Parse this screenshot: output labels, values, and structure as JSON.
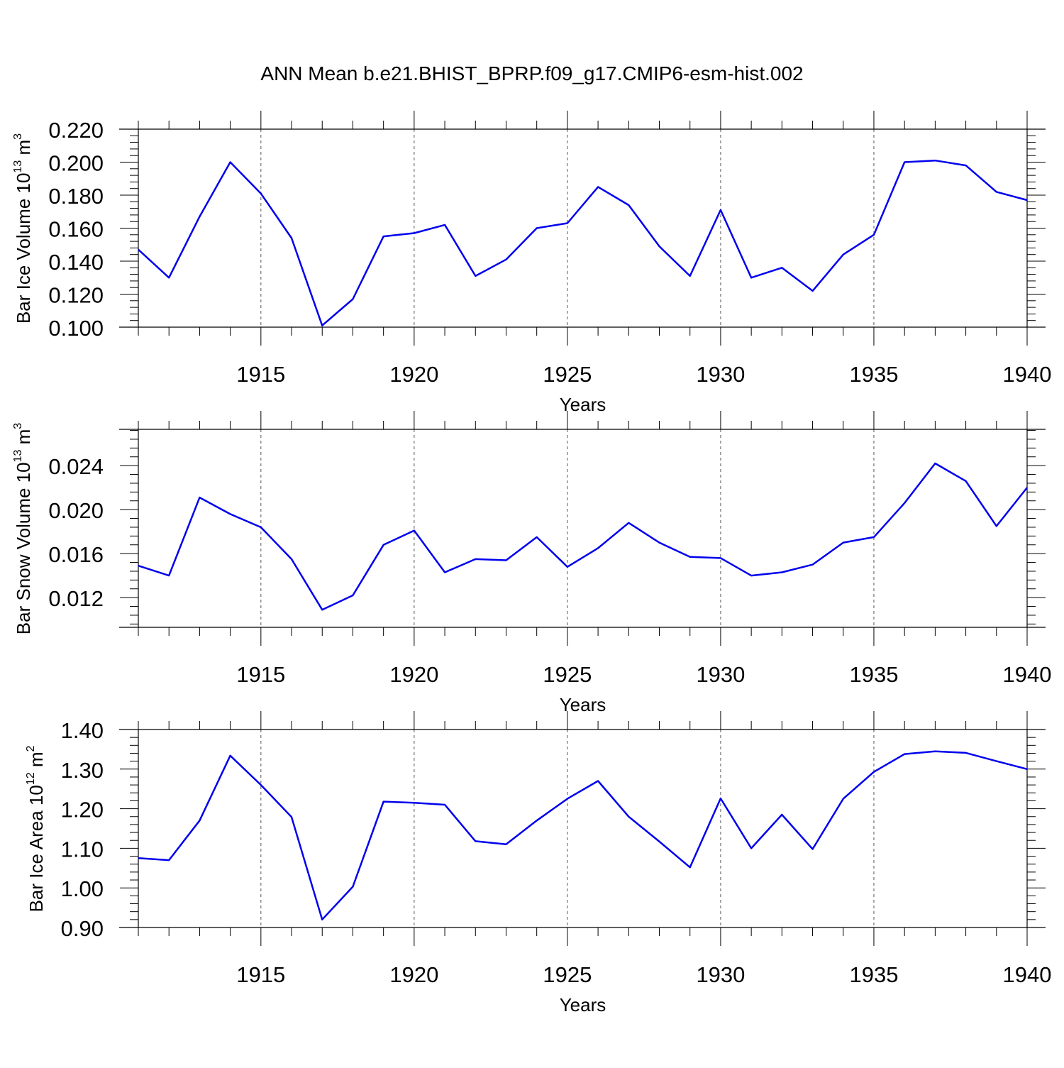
{
  "title": "ANN Mean b.e21.BHIST_BPRP.f09_g17.CMIP6-esm-hist.002",
  "line_color": "#0000ee",
  "chart_data": [
    {
      "type": "line",
      "ylabel": {
        "main": "Bar Ice Volume 10",
        "exp": "13",
        "unit": " m",
        "unit_exp": "3"
      },
      "xlabel": "Years",
      "xlim": [
        1911,
        1940
      ],
      "ylim": [
        0.1,
        0.22
      ],
      "yticks": [
        0.1,
        0.12,
        0.14,
        0.16,
        0.18,
        0.2,
        0.22
      ],
      "ytick_labels": [
        "0.100",
        "0.120",
        "0.140",
        "0.160",
        "0.180",
        "0.200",
        "0.220"
      ],
      "xticks": [
        1915,
        1920,
        1925,
        1930,
        1935,
        1940
      ],
      "xtick_labels": [
        "1915",
        "1920",
        "1925",
        "1930",
        "1935",
        "1940"
      ],
      "x": [
        1911,
        1912,
        1913,
        1914,
        1915,
        1916,
        1917,
        1918,
        1919,
        1920,
        1921,
        1922,
        1923,
        1924,
        1925,
        1926,
        1927,
        1928,
        1929,
        1930,
        1931,
        1932,
        1933,
        1934,
        1935,
        1936,
        1937,
        1938,
        1939,
        1940
      ],
      "values": [
        0.147,
        0.13,
        0.167,
        0.2,
        0.181,
        0.154,
        0.101,
        0.117,
        0.155,
        0.157,
        0.162,
        0.131,
        0.141,
        0.16,
        0.163,
        0.185,
        0.174,
        0.149,
        0.131,
        0.171,
        0.13,
        0.136,
        0.122,
        0.144,
        0.156,
        0.2,
        0.201,
        0.198,
        0.182,
        0.177
      ],
      "grid": "vertical dashed at major x ticks"
    },
    {
      "type": "line",
      "ylabel": {
        "main": "Bar Snow Volume 10",
        "exp": "13",
        "unit": " m",
        "unit_exp": "3"
      },
      "xlabel": "Years",
      "xlim": [
        1911,
        1940
      ],
      "ylim": [
        0.0093,
        0.0273
      ],
      "yticks": [
        0.012,
        0.016,
        0.02,
        0.024
      ],
      "ytick_labels": [
        "0.012",
        "0.016",
        "0.020",
        "0.024"
      ],
      "xticks": [
        1915,
        1920,
        1925,
        1930,
        1935,
        1940
      ],
      "xtick_labels": [
        "1915",
        "1920",
        "1925",
        "1930",
        "1935",
        "1940"
      ],
      "x": [
        1911,
        1912,
        1913,
        1914,
        1915,
        1916,
        1917,
        1918,
        1919,
        1920,
        1921,
        1922,
        1923,
        1924,
        1925,
        1926,
        1927,
        1928,
        1929,
        1930,
        1931,
        1932,
        1933,
        1934,
        1935,
        1936,
        1937,
        1938,
        1939,
        1940
      ],
      "values": [
        0.0149,
        0.014,
        0.0211,
        0.0196,
        0.0184,
        0.0155,
        0.0109,
        0.0122,
        0.0168,
        0.0181,
        0.0143,
        0.0155,
        0.0154,
        0.0175,
        0.0148,
        0.0165,
        0.0188,
        0.017,
        0.0157,
        0.0156,
        0.014,
        0.0143,
        0.015,
        0.017,
        0.0175,
        0.0206,
        0.0242,
        0.0226,
        0.0185,
        0.022
      ],
      "grid": "vertical dashed at major x ticks"
    },
    {
      "type": "line",
      "ylabel": {
        "main": "Bar Ice Area 10",
        "exp": "12",
        "unit": " m",
        "unit_exp": "2"
      },
      "xlabel": "Years",
      "xlim": [
        1911,
        1940
      ],
      "ylim": [
        0.9,
        1.4
      ],
      "yticks": [
        0.9,
        1.0,
        1.1,
        1.2,
        1.3,
        1.4
      ],
      "ytick_labels": [
        "0.90",
        "1.00",
        "1.10",
        "1.20",
        "1.30",
        "1.40"
      ],
      "xticks": [
        1915,
        1920,
        1925,
        1930,
        1935,
        1940
      ],
      "xtick_labels": [
        "1915",
        "1920",
        "1925",
        "1930",
        "1935",
        "1940"
      ],
      "x": [
        1911,
        1912,
        1913,
        1914,
        1915,
        1916,
        1917,
        1918,
        1919,
        1920,
        1921,
        1922,
        1923,
        1924,
        1925,
        1926,
        1927,
        1928,
        1929,
        1930,
        1931,
        1932,
        1933,
        1934,
        1935,
        1936,
        1937,
        1938,
        1939,
        1940
      ],
      "values": [
        1.075,
        1.07,
        1.17,
        1.334,
        1.26,
        1.179,
        0.92,
        1.003,
        1.218,
        1.215,
        1.21,
        1.118,
        1.11,
        1.17,
        1.225,
        1.27,
        1.18,
        1.117,
        1.052,
        1.226,
        1.1,
        1.185,
        1.098,
        1.225,
        1.293,
        1.338,
        1.345,
        1.341,
        1.32,
        1.3
      ],
      "grid": "vertical dashed at major x ticks"
    }
  ]
}
